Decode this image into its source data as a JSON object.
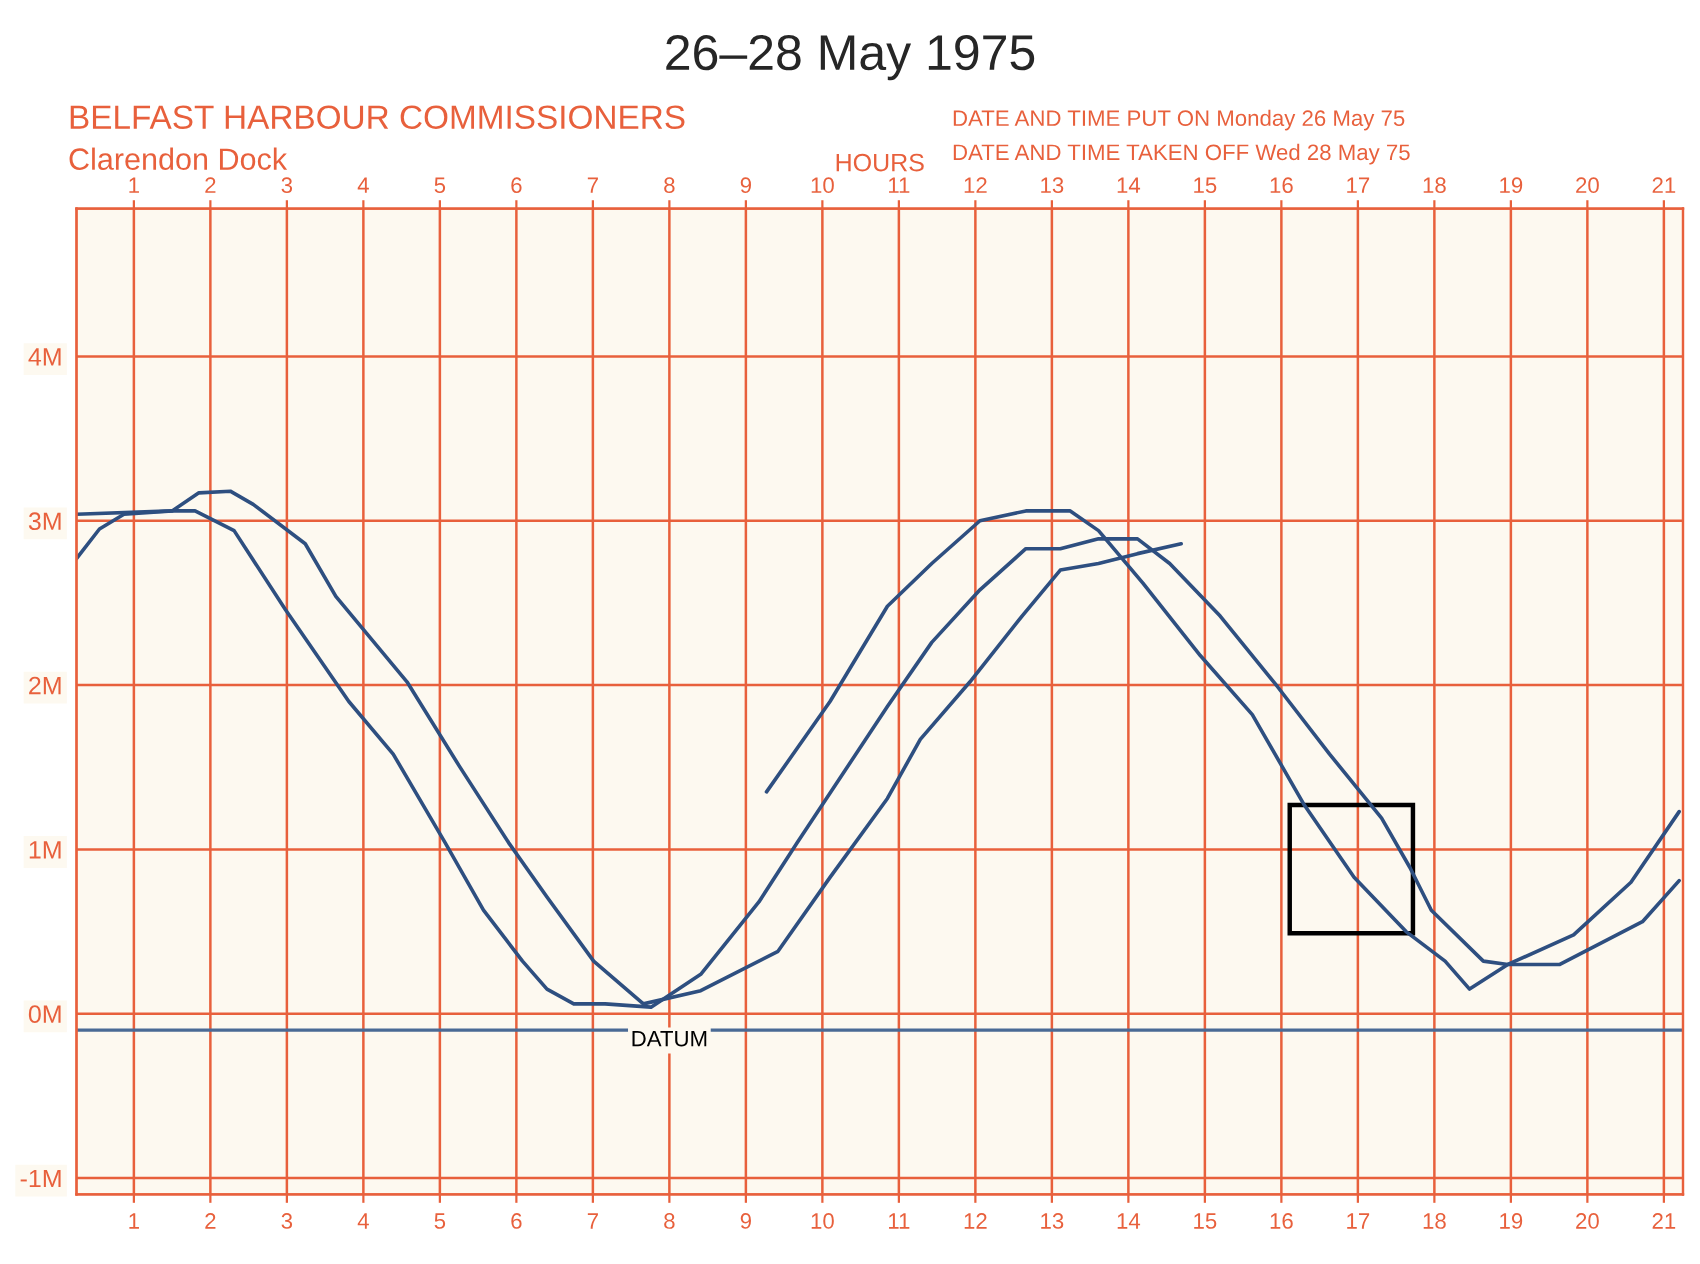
{
  "chart_data": {
    "type": "line",
    "title": "26–28 May 1975",
    "subtitle": "Clarendon Dock",
    "x2label": "HOURS",
    "annotations": [
      "BELFAST HARBOUR COMMISSIONERS",
      "DATE AND TIME PUT ON Monday 26 May 75",
      "DATE AND TIME TAKEN OFF Wed 28 May 75"
    ],
    "xlim": [
      0.25,
      21.25
    ],
    "xticks": [
      1,
      2,
      3,
      4,
      5,
      6,
      7,
      8,
      9,
      10,
      11,
      12,
      13,
      14,
      15,
      16,
      17,
      18,
      19,
      20,
      21
    ],
    "x2lim": [
      0.25,
      21.25
    ],
    "x2ticks": [
      1,
      2,
      3,
      4,
      5,
      6,
      7,
      8,
      9,
      10,
      11,
      12,
      13,
      14,
      15,
      16,
      17,
      18,
      19,
      20,
      21
    ],
    "ylim": [
      -1.1,
      4.9
    ],
    "yticks": [
      {
        "value": -1,
        "label": "-1M"
      },
      {
        "value": 0,
        "label": "0M"
      },
      {
        "value": 1,
        "label": "1M"
      },
      {
        "value": 2,
        "label": "2M"
      },
      {
        "value": 3,
        "label": "3M"
      },
      {
        "value": 4,
        "label": "4M"
      }
    ],
    "grid": true,
    "marker": "none",
    "line_style": "solid",
    "ref_lines": [
      {
        "axis": "y",
        "value": -0.1,
        "label": "DATUM",
        "color": "#4a6a95"
      }
    ],
    "series": [
      {
        "color": "#2e4f80",
        "x": [
          0.25,
          0.55,
          0.87,
          1.5,
          1.8,
          2.31,
          2.98,
          3.81,
          4.39,
          5.07,
          5.57,
          6.08,
          6.4,
          6.75,
          7.16,
          7.76,
          8.41,
          9.17,
          9.67,
          10.85,
          11.43,
          12.06,
          12.66,
          13.11,
          13.61,
          14.12,
          14.54,
          15.2,
          15.95,
          16.63,
          17.31,
          17.68,
          17.96,
          18.64,
          18.96,
          19.64,
          20.72,
          21.2
        ],
        "values": [
          2.77,
          2.95,
          3.04,
          3.06,
          3.06,
          2.94,
          2.46,
          1.9,
          1.58,
          1.04,
          0.63,
          0.32,
          0.15,
          0.06,
          0.06,
          0.04,
          0.24,
          0.68,
          1.04,
          1.87,
          2.26,
          2.58,
          2.83,
          2.83,
          2.89,
          2.89,
          2.74,
          2.42,
          1.99,
          1.58,
          1.19,
          0.89,
          0.63,
          0.32,
          0.3,
          0.3,
          0.56,
          0.81
        ]
      },
      {
        "color": "#2e4f80",
        "x": [
          0.25,
          1.5,
          1.85,
          2.26,
          2.56,
          3.24,
          3.64,
          4.57,
          5.25,
          5.9,
          6.4,
          7.01,
          7.66,
          8.41,
          9.42,
          10.1,
          10.85,
          11.28,
          11.93,
          12.61,
          13.11,
          13.61,
          14.12,
          14.69
        ],
        "values": [
          3.04,
          3.06,
          3.17,
          3.18,
          3.1,
          2.86,
          2.54,
          2.02,
          1.51,
          1.04,
          0.71,
          0.32,
          0.06,
          0.14,
          0.38,
          0.83,
          1.31,
          1.67,
          2.02,
          2.42,
          2.7,
          2.74,
          2.8,
          2.86
        ]
      },
      {
        "color": "#2e4f80",
        "x": [
          9.27,
          10.1,
          10.85,
          11.43,
          12.06,
          12.66,
          13.24,
          13.61,
          14.19,
          14.94,
          15.62,
          16.3,
          16.95,
          17.63,
          18.14,
          18.46,
          18.96,
          19.82,
          20.57,
          21.2
        ],
        "values": [
          1.35,
          1.9,
          2.48,
          2.74,
          3.0,
          3.06,
          3.06,
          2.94,
          2.62,
          2.18,
          1.82,
          1.27,
          0.83,
          0.5,
          0.32,
          0.15,
          0.3,
          0.48,
          0.8,
          1.23
        ]
      }
    ]
  }
}
